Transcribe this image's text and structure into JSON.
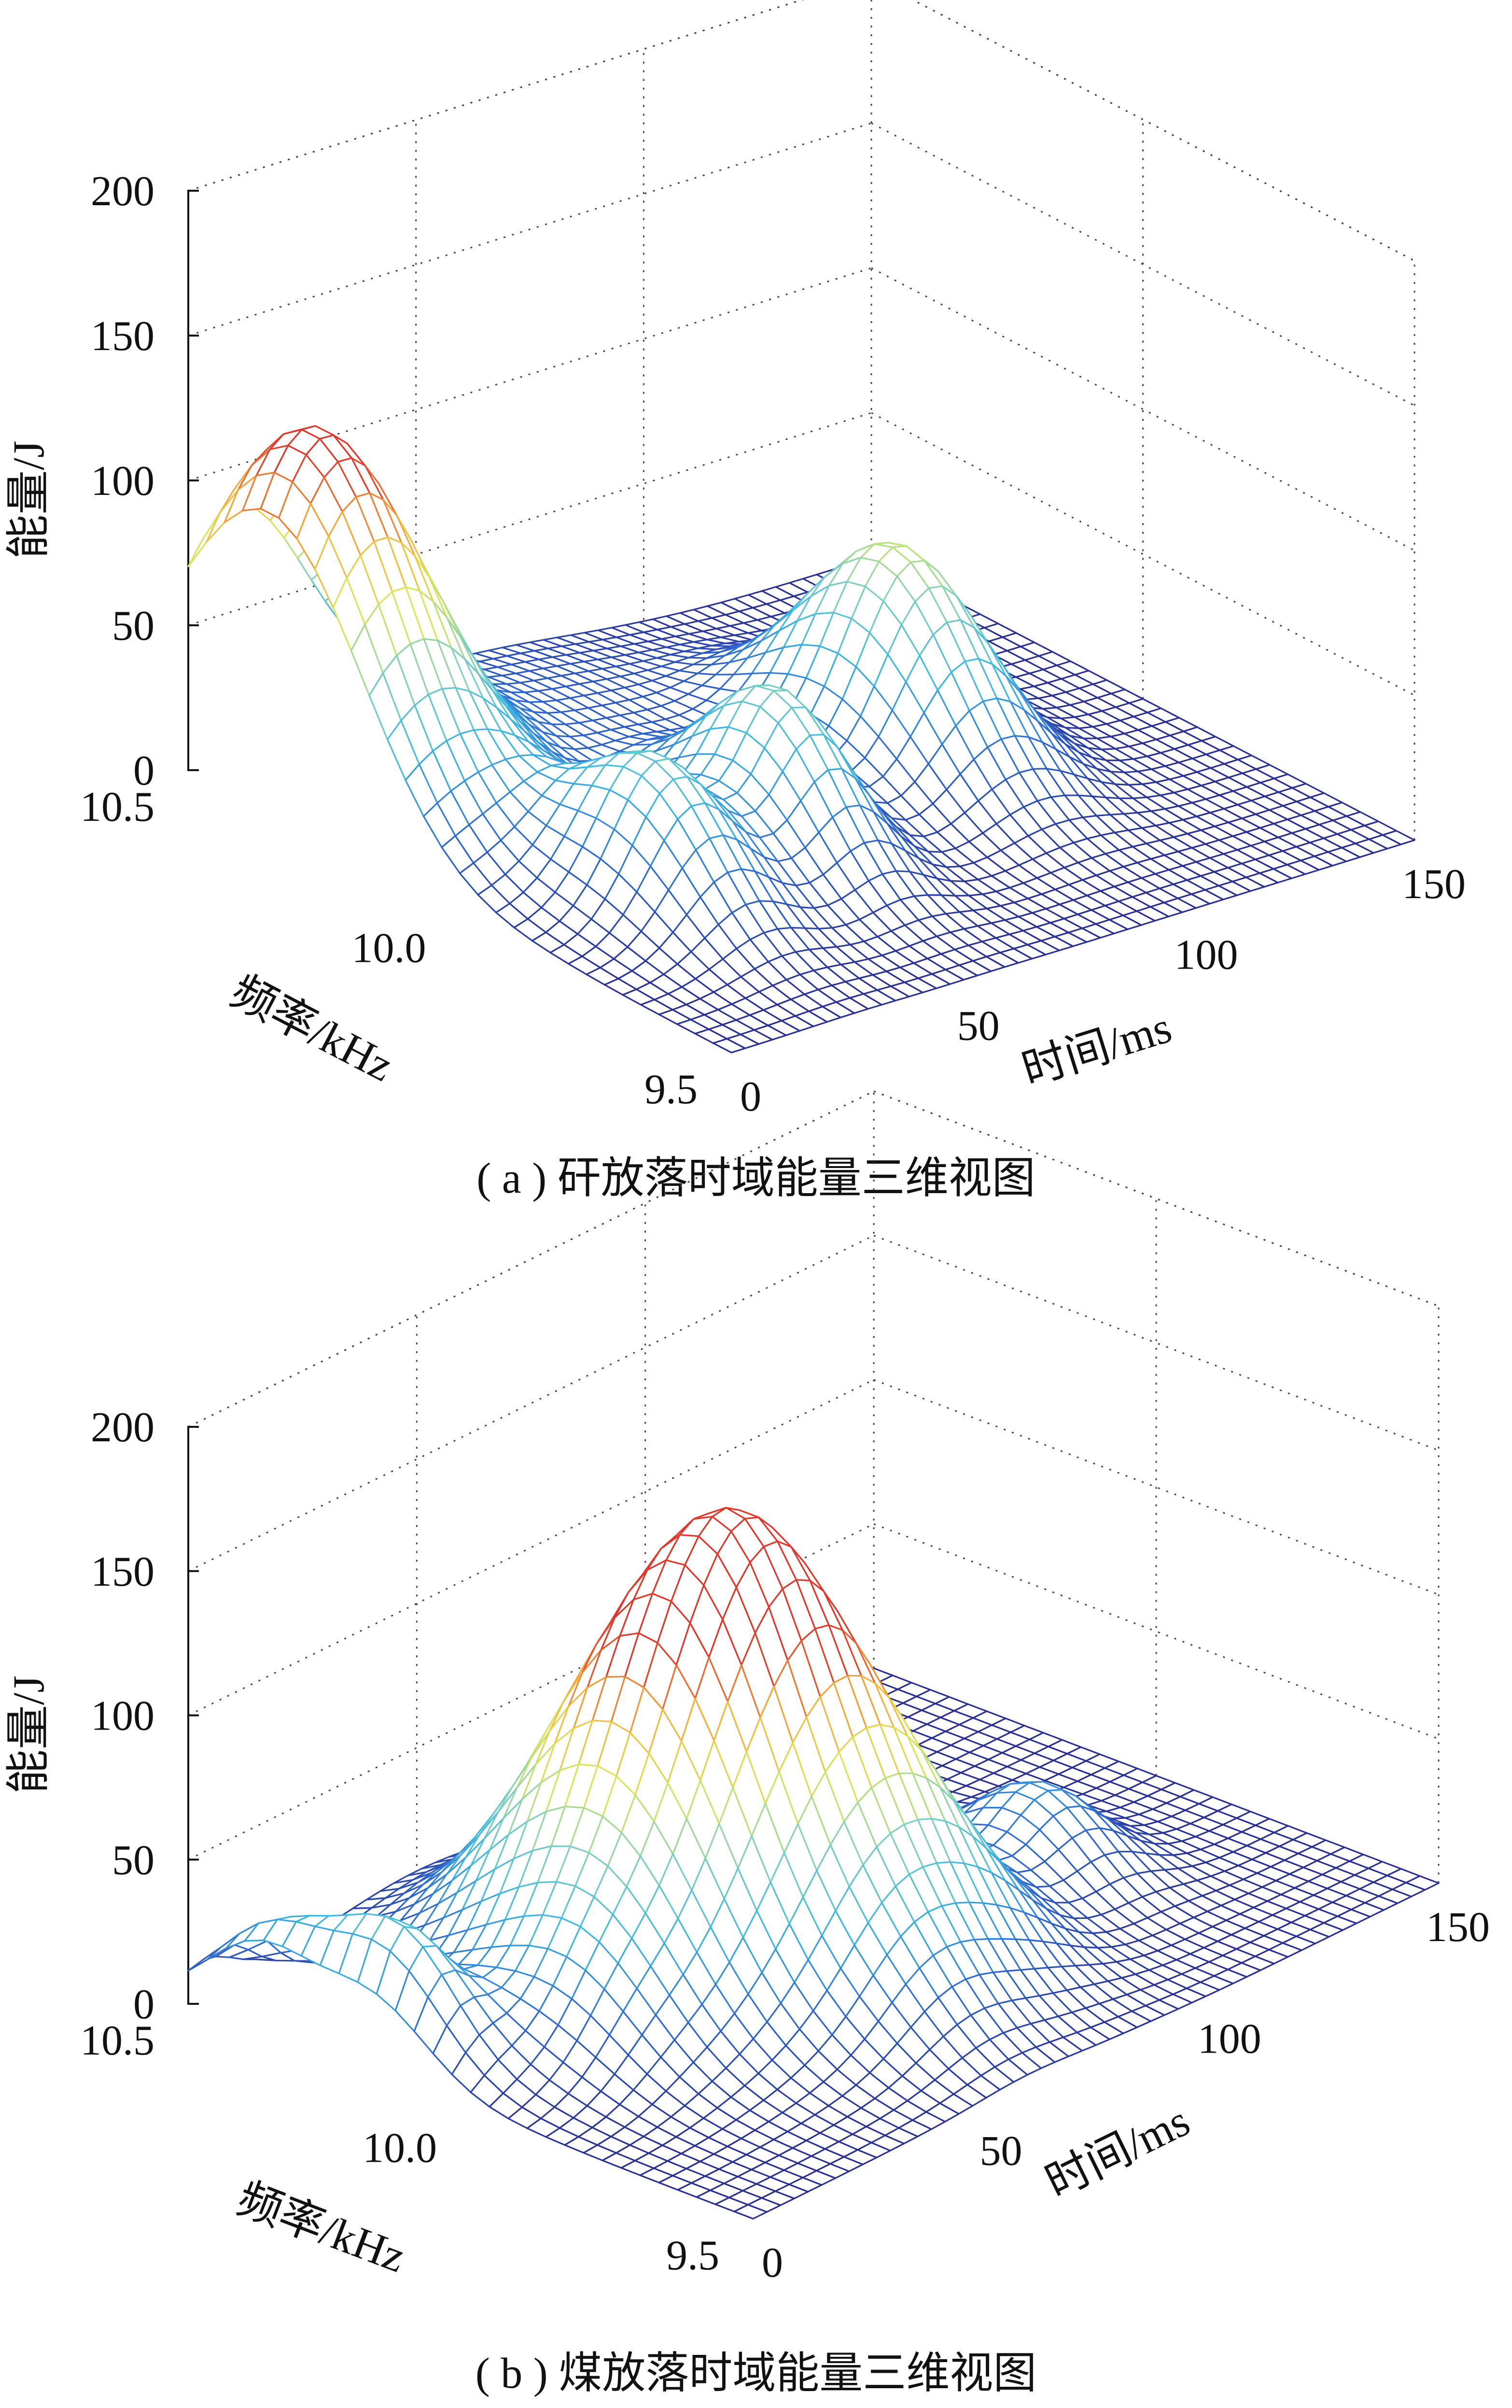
{
  "chart_data": [
    {
      "type": "surface",
      "caption": "( a ) 矸放落时域能量三维视图",
      "zlabel": "能量/J",
      "xlabel": "时间/ms",
      "ylabel": "频率/kHz",
      "zticks": [
        "0",
        "50",
        "100",
        "150",
        "200"
      ],
      "xticks": [
        "0",
        "50",
        "100",
        "150"
      ],
      "yticks": [
        "9.5",
        "10.0",
        "10.5"
      ],
      "zlim": [
        0,
        200
      ],
      "xlim": [
        0,
        150
      ],
      "ylim": [
        9.5,
        10.5
      ],
      "grid": true,
      "colormap": [
        "#2b2f8f",
        "#2f6bd1",
        "#3fb8e0",
        "#7fd0c0",
        "#d8e85a",
        "#f5b43c",
        "#e2362b"
      ],
      "peaks": [
        {
          "t": 10,
          "f": 10.35,
          "energy": 125,
          "width_t": 16,
          "width_f": 0.17
        },
        {
          "t": 28,
          "f": 9.87,
          "energy": 50,
          "width_t": 10,
          "width_f": 0.12
        },
        {
          "t": 58,
          "f": 9.9,
          "energy": 56,
          "width_t": 9,
          "width_f": 0.12
        },
        {
          "t": 100,
          "f": 10.03,
          "energy": 73,
          "width_t": 12,
          "width_f": 0.14
        },
        {
          "t": 58,
          "f": 10.32,
          "energy": 14,
          "width_t": 25,
          "width_f": 0.2
        }
      ]
    },
    {
      "type": "surface",
      "caption": "( b ) 煤放落时域能量三维视图",
      "zlabel": "能量/J",
      "xlabel": "时间/ms",
      "ylabel": "频率/kHz",
      "zticks": [
        "0",
        "50",
        "100",
        "150",
        "200"
      ],
      "xticks": [
        "0",
        "50",
        "100",
        "150"
      ],
      "yticks": [
        "9.5",
        "10.0",
        "10.5"
      ],
      "zlim": [
        0,
        200
      ],
      "xlim": [
        0,
        150
      ],
      "ylim": [
        9.5,
        10.5
      ],
      "grid": true,
      "colormap": [
        "#2b2f8f",
        "#2f6bd1",
        "#3fb8e0",
        "#7fd0c0",
        "#d8e85a",
        "#f5b43c",
        "#e2362b"
      ],
      "peaks": [
        {
          "t": 50,
          "f": 10.08,
          "energy": 110,
          "width_t": 17,
          "width_f": 0.18
        },
        {
          "t": 67,
          "f": 9.99,
          "energy": 82,
          "width_t": 14,
          "width_f": 0.14
        },
        {
          "t": 6,
          "f": 10.18,
          "energy": 42,
          "width_t": 6,
          "width_f": 0.1
        },
        {
          "t": 3,
          "f": 10.38,
          "energy": 30,
          "width_t": 7,
          "width_f": 0.09
        },
        {
          "t": 114,
          "f": 9.92,
          "energy": 30,
          "width_t": 9,
          "width_f": 0.1
        },
        {
          "t": 80,
          "f": 9.82,
          "energy": 33,
          "width_t": 12,
          "width_f": 0.12
        },
        {
          "t": 60,
          "f": 9.7,
          "energy": 18,
          "width_t": 10,
          "width_f": 0.1
        },
        {
          "t": 23,
          "f": 9.98,
          "energy": 14,
          "width_t": 8,
          "width_f": 0.1
        }
      ]
    }
  ]
}
